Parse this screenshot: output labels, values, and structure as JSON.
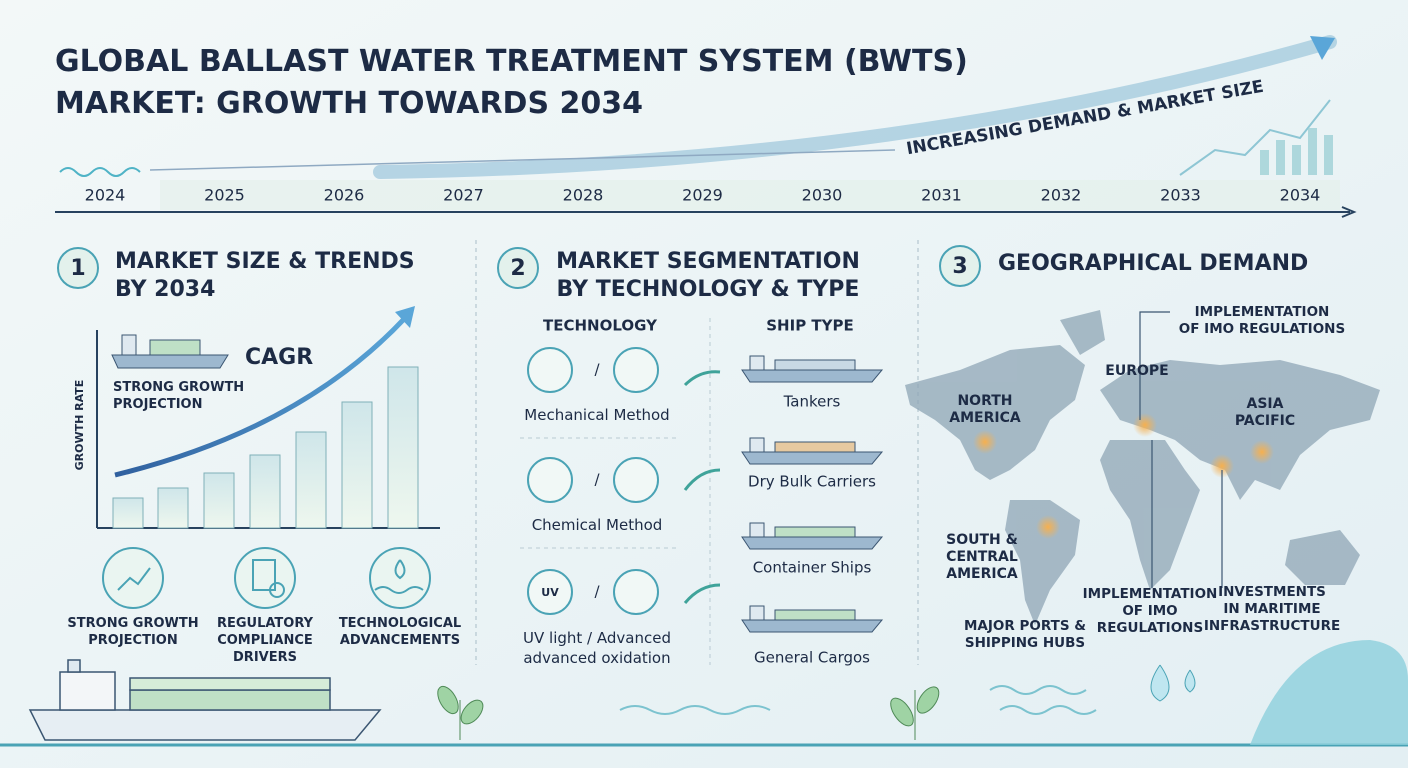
{
  "header": {
    "title": [
      "GLOBAL BALLAST WATER TREATMENT SYSTEM (BWTS)",
      "MARKET: GROWTH TOWARDS 2034"
    ]
  },
  "timeline": {
    "years": [
      "2024",
      "2025",
      "2026",
      "2027",
      "2028",
      "2029",
      "2030",
      "2031",
      "2032",
      "2033",
      "2034"
    ],
    "trend_label": "INCREASING DEMAND & MARKET SIZE"
  },
  "sections": [
    {
      "number": "1",
      "title": [
        "MARKET SIZE & TRENDS",
        "BY 2034"
      ],
      "chart": {
        "axis_label": "GROWTH RATE",
        "cagr": "CAGR",
        "note": [
          "STRONG GROWTH",
          "PROJECTION"
        ]
      },
      "drivers": [
        [
          "STRONG GROWTH",
          "PROJECTION"
        ],
        [
          "REGULATORY",
          "COMPLIANCE",
          "DRIVERS"
        ],
        [
          "TECHNOLOGICAL",
          "ADVANCEMENTS"
        ]
      ]
    },
    {
      "number": "2",
      "title": [
        "MARKET SEGMENTATION",
        "BY TECHNOLOGY & TYPE"
      ],
      "technology_header": "TECHNOLOGY",
      "ship_type_header": "SHIP TYPE",
      "separator": "/",
      "uv_icon": "UV",
      "technologies": [
        [
          "Mechanical Method"
        ],
        [
          "Chemical Method"
        ],
        [
          "UV light / Advanced",
          "advanced oxidation"
        ]
      ],
      "ship_types": [
        "Tankers",
        "Dry Bulk Carriers",
        "Container Ships",
        "General Cargos"
      ]
    },
    {
      "number": "3",
      "title": "GEOGRAPHICAL DEMAND",
      "regions": [
        [
          "NORTH",
          "AMERICA"
        ],
        [
          "EUROPE"
        ],
        [
          "ASIA",
          "PACIFIC"
        ],
        [
          "SOUTH &",
          "CENTRAL",
          "AMERICA"
        ]
      ],
      "callouts": [
        [
          "IMPLEMENTATION",
          "OF IMO REGULATIONS"
        ],
        [
          "IMPLEMENTATION",
          "OF IMO",
          "REGULATIONS"
        ],
        [
          "INVESTMENTS",
          "IN MARITIME",
          "INFRASTRUCTURE"
        ],
        [
          "MAJOR PORTS &",
          "SHIPPING HUBS"
        ]
      ]
    }
  ]
}
